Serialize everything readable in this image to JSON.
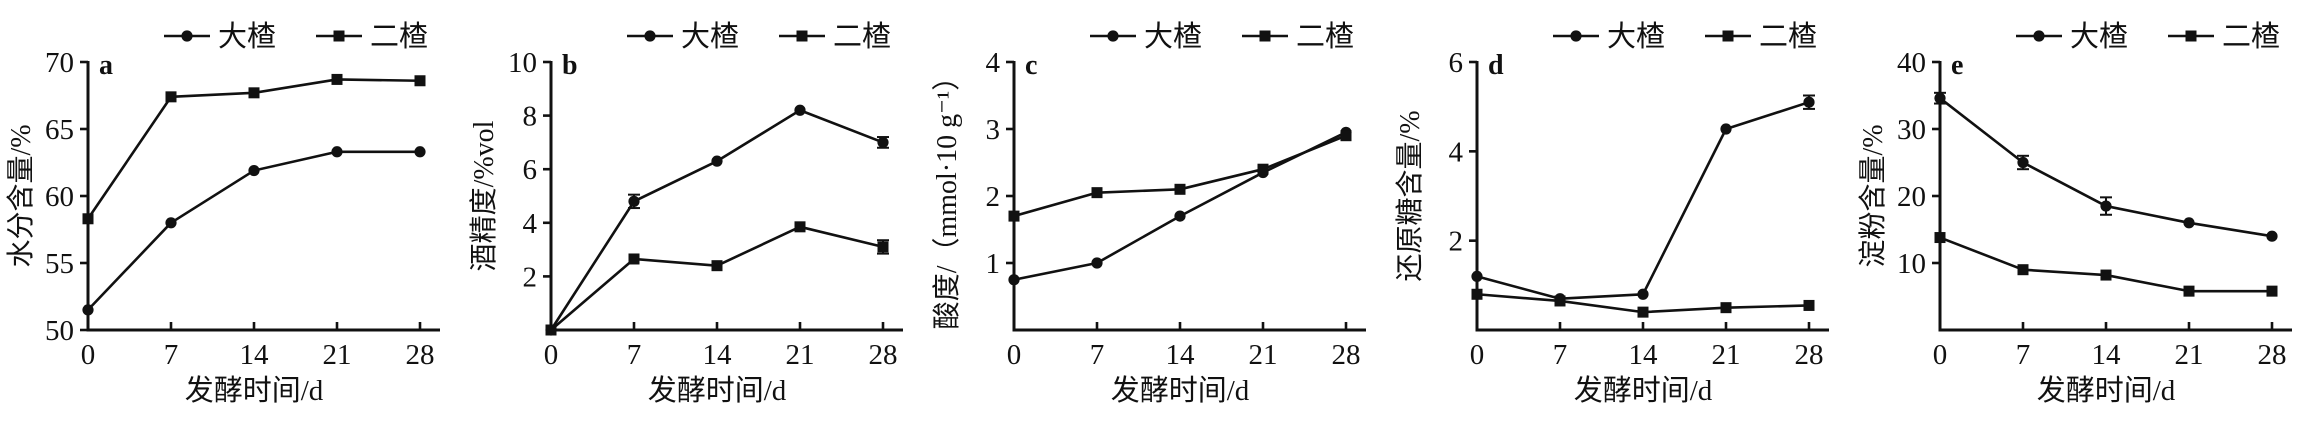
{
  "figure": {
    "line_color": "#111111",
    "xlabel": "发酵时间/d",
    "x_ticks": [
      0,
      7,
      14,
      21,
      28
    ],
    "legend": [
      {
        "name": "大楂",
        "marker": "circle"
      },
      {
        "name": "二楂",
        "marker": "square"
      }
    ]
  },
  "chart_data": [
    {
      "type": "line",
      "panel": "a",
      "ylabel": "水分含量/%",
      "xlabel": "发酵时间/d",
      "x": [
        0,
        7,
        14,
        21,
        28
      ],
      "ylim": [
        50,
        70
      ],
      "yticks": [
        50,
        55,
        60,
        65,
        70
      ],
      "legend_position": "top",
      "grid": false,
      "series": [
        {
          "name": "大楂",
          "marker": "circle",
          "values": [
            51.5,
            58.0,
            61.9,
            63.3,
            63.3
          ],
          "err": [
            0,
            0,
            0,
            0,
            0
          ]
        },
        {
          "name": "二楂",
          "marker": "square",
          "values": [
            58.3,
            67.4,
            67.7,
            68.7,
            68.6
          ],
          "err": [
            0,
            0,
            0,
            0,
            0
          ]
        }
      ]
    },
    {
      "type": "line",
      "panel": "b",
      "ylabel": "酒精度/%vol",
      "xlabel": "发酵时间/d",
      "x": [
        0,
        7,
        14,
        21,
        28
      ],
      "ylim": [
        0,
        10
      ],
      "yticks": [
        2,
        4,
        6,
        8,
        10
      ],
      "legend_position": "top",
      "grid": false,
      "series": [
        {
          "name": "大楂",
          "marker": "circle",
          "values": [
            0,
            4.8,
            6.3,
            8.2,
            7.0
          ],
          "err": [
            0,
            0.25,
            0,
            0,
            0.2
          ]
        },
        {
          "name": "二楂",
          "marker": "square",
          "values": [
            0,
            2.65,
            2.4,
            3.85,
            3.1
          ],
          "err": [
            0,
            0,
            0,
            0,
            0.25
          ]
        }
      ]
    },
    {
      "type": "line",
      "panel": "c",
      "ylabel": "酸度/（mmol·10 g⁻¹）",
      "xlabel": "发酵时间/d",
      "x": [
        0,
        7,
        14,
        21,
        28
      ],
      "ylim": [
        0,
        4
      ],
      "yticks": [
        1,
        2,
        3,
        4
      ],
      "legend_position": "top",
      "grid": false,
      "series": [
        {
          "name": "大楂",
          "marker": "circle",
          "values": [
            0.75,
            1.0,
            1.7,
            2.35,
            2.95
          ],
          "err": [
            0,
            0,
            0,
            0,
            0
          ]
        },
        {
          "name": "二楂",
          "marker": "square",
          "values": [
            1.7,
            2.05,
            2.1,
            2.4,
            2.9
          ],
          "err": [
            0,
            0,
            0,
            0,
            0
          ]
        }
      ]
    },
    {
      "type": "line",
      "panel": "d",
      "ylabel": "还原糖含量/%",
      "xlabel": "发酵时间/d",
      "x": [
        0,
        7,
        14,
        21,
        28
      ],
      "ylim": [
        0,
        6
      ],
      "yticks": [
        2,
        4,
        6
      ],
      "legend_position": "top",
      "grid": false,
      "series": [
        {
          "name": "大楂",
          "marker": "circle",
          "values": [
            1.2,
            0.7,
            0.8,
            4.5,
            5.1
          ],
          "err": [
            0,
            0,
            0,
            0,
            0.15
          ]
        },
        {
          "name": "二楂",
          "marker": "square",
          "values": [
            0.8,
            0.65,
            0.4,
            0.5,
            0.55
          ],
          "err": [
            0,
            0,
            0,
            0,
            0
          ]
        }
      ]
    },
    {
      "type": "line",
      "panel": "e",
      "ylabel": "淀粉含量/%",
      "xlabel": "发酵时间/d",
      "x": [
        0,
        7,
        14,
        21,
        28
      ],
      "ylim": [
        0,
        40
      ],
      "yticks": [
        10,
        20,
        30,
        40
      ],
      "legend_position": "top",
      "grid": false,
      "series": [
        {
          "name": "大楂",
          "marker": "circle",
          "values": [
            34.6,
            25.0,
            18.5,
            16.0,
            14.0
          ],
          "err": [
            0.8,
            1.0,
            1.3,
            0,
            0
          ]
        },
        {
          "name": "二楂",
          "marker": "square",
          "values": [
            13.8,
            9.0,
            8.2,
            5.8,
            5.8
          ],
          "err": [
            0,
            0,
            0,
            0,
            0
          ]
        }
      ]
    }
  ]
}
